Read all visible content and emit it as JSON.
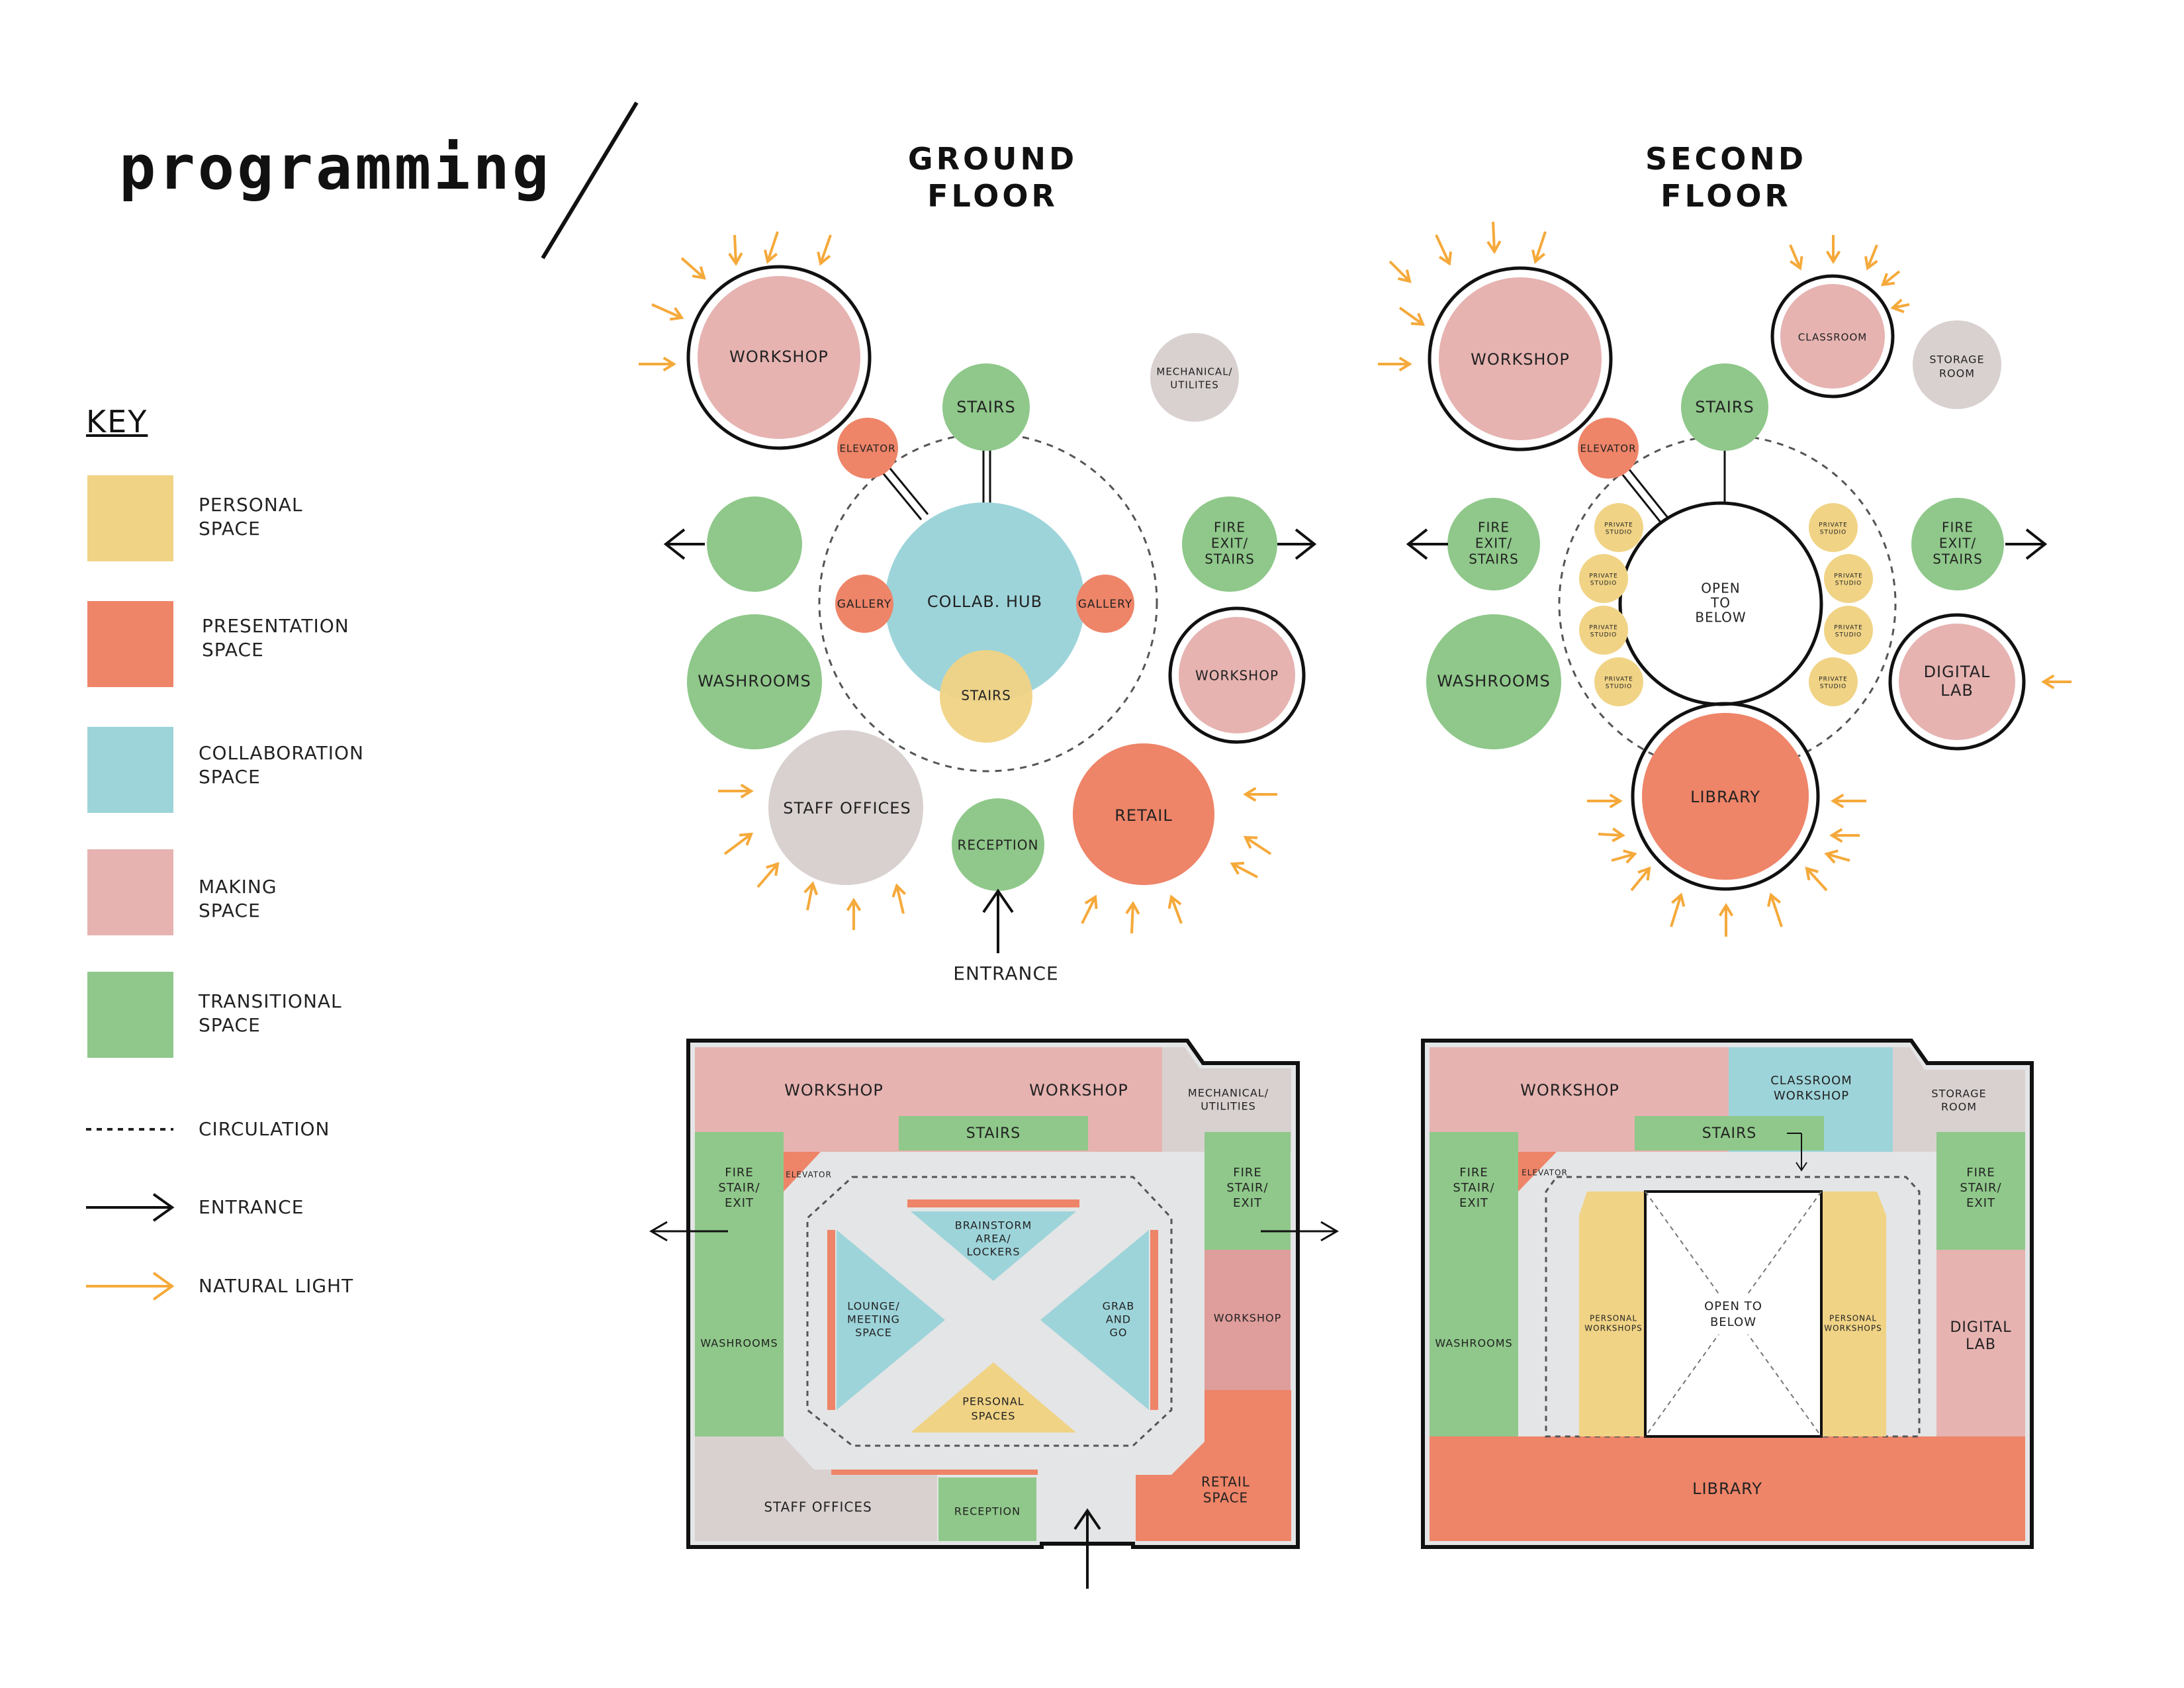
{
  "title": "programming",
  "key": {
    "heading": "KEY",
    "items": [
      {
        "label_1": "PERSONAL",
        "label_2": "SPACE",
        "color": "#f0d385"
      },
      {
        "label_1": "PRESENTATION",
        "label_2": "SPACE",
        "color": "#ee8468"
      },
      {
        "label_1": "COLLABORATION",
        "label_2": "SPACE",
        "color": "#9dd4da"
      },
      {
        "label_1": "MAKING",
        "label_2": "SPACE",
        "color": "#e6b3b1"
      },
      {
        "label_1": "TRANSITIONAL",
        "label_2": "SPACE",
        "color": "#8fc88a"
      }
    ],
    "circulation": "CIRCULATION",
    "entrance": "ENTRANCE",
    "natural_light": "NATURAL LIGHT"
  },
  "colors": {
    "personal": "#f0d385",
    "presentation": "#ee8468",
    "collaboration": "#9dd4da",
    "making": "#e6b3b1",
    "transitional": "#8fc88a",
    "utility": "#d9d1d0",
    "circulation_floor": "#e4e5e6",
    "light_arrow": "#f5a93a"
  },
  "ground": {
    "title_1": "GROUND",
    "title_2": "FLOOR",
    "bubbles": {
      "workshop_1": "WORKSHOP",
      "mechanical_1": "MECHANICAL/",
      "mechanical_2": "UTILITES",
      "stairs_top": "STAIRS",
      "elevator": "ELEVATOR",
      "collab_hub": "COLLAB. HUB",
      "gallery_left": "GALLERY",
      "gallery_right": "GALLERY",
      "stairs_center": "STAIRS",
      "fire_exit_1": "FIRE",
      "fire_exit_2": "EXIT/",
      "fire_exit_3": "STAIRS",
      "washrooms": "WASHROOMS",
      "workshop_2": "WORKSHOP",
      "staff_offices": "STAFF OFFICES",
      "reception": "RECEPTION",
      "retail": "RETAIL",
      "entrance": "ENTRANCE"
    },
    "plan": {
      "workshop_1": "WORKSHOP",
      "workshop_2": "WORKSHOP",
      "mechanical_1": "MECHANICAL/",
      "mechanical_2": "UTILITIES",
      "stairs": "STAIRS",
      "fire_left_1": "FIRE",
      "fire_left_2": "STAIR/",
      "fire_left_3": "EXIT",
      "elevator": "ELEVATOR",
      "fire_right_1": "FIRE",
      "fire_right_2": "STAIR/",
      "fire_right_3": "EXIT",
      "brainstorm_1": "BRAINSTORM",
      "brainstorm_2": "AREA/",
      "brainstorm_3": "LOCKERS",
      "lounge_1": "LOUNGE/",
      "lounge_2": "MEETING",
      "lounge_3": "SPACE",
      "grab_1": "GRAB",
      "grab_2": "AND",
      "grab_3": "GO",
      "personal_1": "PERSONAL",
      "personal_2": "SPACES",
      "washrooms": "WASHROOMS",
      "workshop_3": "WORKSHOP",
      "staff_offices": "STAFF OFFICES",
      "reception": "RECEPTION",
      "retail_1": "RETAIL",
      "retail_2": "SPACE"
    }
  },
  "second": {
    "title_1": "SECOND",
    "title_2": "FLOOR",
    "bubbles": {
      "workshop": "WORKSHOP",
      "classroom": "CLASSROOM",
      "storage_1": "STORAGE",
      "storage_2": "ROOM",
      "stairs": "STAIRS",
      "elevator": "ELEVATOR",
      "fire_left_1": "FIRE",
      "fire_left_2": "EXIT/",
      "fire_left_3": "STAIRS",
      "fire_right_1": "FIRE",
      "fire_right_2": "EXIT/",
      "fire_right_3": "STAIRS",
      "open_1": "OPEN",
      "open_2": "TO",
      "open_3": "BELOW",
      "private_1": "PRIVATE",
      "private_2": "STUDIO",
      "washrooms": "WASHROOMS",
      "digital_1": "DIGITAL",
      "digital_2": "LAB",
      "library": "LIBRARY"
    },
    "plan": {
      "workshop": "WORKSHOP",
      "classroom_1": "CLASSROOM",
      "classroom_2": "WORKSHOP",
      "storage_1": "STORAGE",
      "storage_2": "ROOM",
      "stairs": "STAIRS",
      "fire_left_1": "FIRE",
      "fire_left_2": "STAIR/",
      "fire_left_3": "EXIT",
      "elevator": "ELEVATOR",
      "fire_right_1": "FIRE",
      "fire_right_2": "STAIR/",
      "fire_right_3": "EXIT",
      "personal_ws_1": "PERSONAL",
      "personal_ws_2": "WORKSHOPS",
      "open_1": "OPEN TO",
      "open_2": "BELOW",
      "washrooms": "WASHROOMS",
      "digital_1": "DIGITAL",
      "digital_2": "LAB",
      "library": "LIBRARY"
    }
  }
}
